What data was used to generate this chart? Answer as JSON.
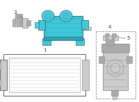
{
  "bg_color": "#ffffff",
  "fig_width": 2.0,
  "fig_height": 1.47,
  "dpi": 100,
  "pump_color": "#3ec8d8",
  "pump_dark": "#2aa0b0",
  "pump_mid": "#55d0e0",
  "outline": "#336677",
  "gray_light": "#cccccc",
  "gray_mid": "#aaaaaa",
  "gray_dark": "#888888",
  "line_color": "#555555",
  "label_fs": 5.0,
  "box_edge": "#888888"
}
